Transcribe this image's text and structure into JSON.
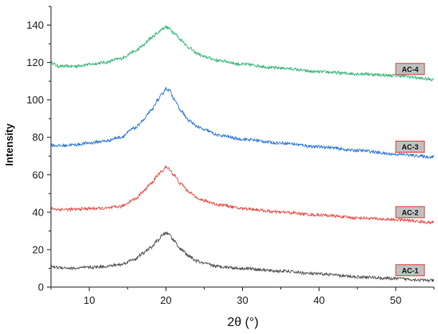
{
  "chart_data": {
    "type": "line",
    "title": "",
    "xlabel": "2θ (°)",
    "ylabel": "Intensity",
    "xlim": [
      5,
      55
    ],
    "ylim": [
      0,
      150
    ],
    "x_ticks": [
      10,
      20,
      30,
      40,
      50
    ],
    "y_ticks": [
      0,
      20,
      40,
      60,
      80,
      100,
      120,
      140
    ],
    "grid": false,
    "legend": "series labels placed at right end of each curve",
    "label_box_fill": "#c0c0c0",
    "label_box_border": "#e0403a",
    "series": [
      {
        "name": "AC-4",
        "color": "#3cb878",
        "x": [
          5,
          6,
          8,
          10,
          12,
          14,
          16,
          17,
          18,
          19,
          19.5,
          20,
          20.5,
          21,
          22,
          23,
          24,
          25,
          27,
          30,
          35,
          40,
          45,
          50,
          55
        ],
        "y": [
          120,
          118,
          118,
          119,
          120,
          122,
          126,
          129,
          133,
          136,
          138,
          139,
          138,
          136,
          132,
          128,
          125,
          123,
          121,
          119,
          117,
          115,
          114,
          113,
          111
        ]
      },
      {
        "name": "AC-3",
        "color": "#2e78d6",
        "x": [
          5,
          6,
          8,
          10,
          12,
          14,
          16,
          17,
          18,
          19,
          19.5,
          20,
          20.5,
          21,
          22,
          23,
          24,
          25,
          27,
          30,
          35,
          40,
          45,
          50,
          55
        ],
        "y": [
          76,
          75.5,
          76,
          77,
          78,
          80,
          85,
          89,
          94,
          100,
          103,
          106,
          105,
          101,
          94,
          89,
          86,
          84,
          81,
          79,
          77,
          75,
          73,
          71,
          69.5
        ]
      },
      {
        "name": "AC-2",
        "color": "#e8504a",
        "x": [
          5,
          6,
          8,
          10,
          12,
          14,
          16,
          17,
          18,
          19,
          19.5,
          20,
          20.5,
          21,
          22,
          23,
          24,
          25,
          27,
          30,
          35,
          40,
          45,
          50,
          55
        ],
        "y": [
          42,
          41.5,
          41.5,
          42,
          42,
          43,
          47,
          51,
          55,
          60,
          62,
          64,
          63,
          60,
          55,
          51,
          48,
          46,
          44,
          42,
          40,
          38.5,
          37,
          36,
          34.5
        ]
      },
      {
        "name": "AC-1",
        "color": "#555555",
        "x": [
          5,
          6,
          8,
          10,
          12,
          14,
          16,
          17,
          18,
          19,
          19.5,
          20,
          20.5,
          21,
          22,
          23,
          24,
          25,
          27,
          30,
          35,
          40,
          45,
          50,
          55
        ],
        "y": [
          11,
          10.5,
          10,
          10.5,
          11,
          12,
          15,
          18,
          21,
          25,
          27.5,
          29,
          28,
          25,
          20,
          16.5,
          14,
          12.5,
          11,
          10,
          8.5,
          7,
          5.5,
          4.5,
          3.5
        ]
      }
    ]
  }
}
